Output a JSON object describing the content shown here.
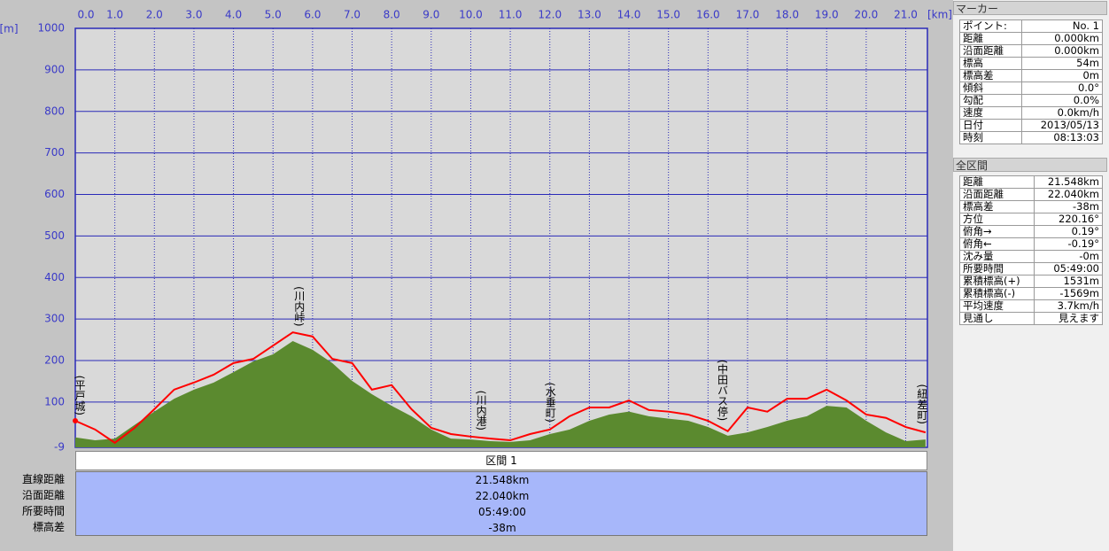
{
  "chart_data": {
    "type": "area",
    "x_label": "[km]",
    "y_label": "[m]",
    "xlim": [
      0,
      21.548
    ],
    "ylim": [
      -9,
      1000
    ],
    "xticks": [
      {
        "value": 0,
        "label": "0.0"
      },
      {
        "value": 1,
        "label": "1.0"
      },
      {
        "value": 2,
        "label": "2.0"
      },
      {
        "value": 3,
        "label": "3.0"
      },
      {
        "value": 4,
        "label": "4.0"
      },
      {
        "value": 5,
        "label": "5.0"
      },
      {
        "value": 6,
        "label": "6.0"
      },
      {
        "value": 7,
        "label": "7.0"
      },
      {
        "value": 8,
        "label": "8.0"
      },
      {
        "value": 9,
        "label": "9.0"
      },
      {
        "value": 10,
        "label": "10.0"
      },
      {
        "value": 11,
        "label": "11.0"
      },
      {
        "value": 12,
        "label": "12.0"
      },
      {
        "value": 13,
        "label": "13.0"
      },
      {
        "value": 14,
        "label": "14.0"
      },
      {
        "value": 15,
        "label": "15.0"
      },
      {
        "value": 16,
        "label": "16.0"
      },
      {
        "value": 17,
        "label": "17.0"
      },
      {
        "value": 18,
        "label": "18.0"
      },
      {
        "value": 19,
        "label": "19.0"
      },
      {
        "value": 20,
        "label": "20.0"
      },
      {
        "value": 21,
        "label": "21.0"
      }
    ],
    "yticks": [
      -9,
      100,
      200,
      300,
      400,
      500,
      600,
      700,
      800,
      900,
      1000
    ],
    "grid": true,
    "x": [
      0,
      0.5,
      1,
      1.5,
      2,
      2.5,
      3,
      3.5,
      4,
      4.5,
      5,
      5.5,
      6,
      6.5,
      7,
      7.5,
      8,
      8.5,
      9,
      9.5,
      10,
      10.5,
      11,
      11.5,
      12,
      12.5,
      13,
      13.5,
      14,
      14.5,
      15,
      15.5,
      16,
      16.5,
      17,
      17.5,
      18,
      18.5,
      19,
      19.5,
      20,
      20.5,
      21,
      21.5
    ],
    "series": [
      {
        "type": "area",
        "color": "#5b8a2f",
        "values": [
          15,
          8,
          12,
          45,
          77,
          108,
          130,
          147,
          172,
          198,
          215,
          247,
          226,
          194,
          151,
          119,
          91,
          66,
          34,
          12,
          10,
          6,
          4,
          8,
          23,
          34,
          55,
          70,
          77,
          66,
          60,
          55,
          40,
          19,
          27,
          40,
          55,
          66,
          91,
          87,
          55,
          27,
          6,
          10
        ]
      },
      {
        "type": "line",
        "color": "#ff0000",
        "values": [
          55,
          34,
          2,
          38,
          83,
          130,
          147,
          166,
          194,
          204,
          236,
          268,
          258,
          204,
          194,
          130,
          141,
          83,
          38,
          23,
          17,
          12,
          8,
          23,
          34,
          66,
          87,
          87,
          104,
          81,
          77,
          70,
          55,
          30,
          87,
          77,
          108,
          108,
          130,
          104,
          70,
          62,
          40,
          27
        ]
      }
    ],
    "annotations": [
      {
        "text": "(平戸城)",
        "x": 0.1
      },
      {
        "text": "(川内峠)",
        "x": 5.65
      },
      {
        "text": "(川内港)",
        "x": 10.25
      },
      {
        "text": "(水垂町)",
        "x": 12.0
      },
      {
        "text": "(中田バス停)",
        "x": 16.35
      },
      {
        "text": "(紐差町)",
        "x": 21.4
      }
    ]
  },
  "marker_panel": {
    "title": "マーカー",
    "rows": [
      [
        "ポイント:",
        "No. 1"
      ],
      [
        "距離",
        "0.000km"
      ],
      [
        "沿面距離",
        "0.000km"
      ],
      [
        "標高",
        "54m"
      ],
      [
        "標高差",
        "0m"
      ],
      [
        "傾斜",
        "0.0°"
      ],
      [
        "勾配",
        "0.0%"
      ],
      [
        "速度",
        "0.0km/h"
      ],
      [
        "日付",
        "2013/05/13"
      ],
      [
        "時刻",
        "08:13:03"
      ]
    ]
  },
  "total_panel": {
    "title": "全区間",
    "rows": [
      [
        "距離",
        "21.548km"
      ],
      [
        "沿面距離",
        "22.040km"
      ],
      [
        "標高差",
        "-38m"
      ],
      [
        "方位",
        "220.16°"
      ],
      [
        "俯角→",
        "0.19°"
      ],
      [
        "俯角←",
        "-0.19°"
      ],
      [
        "沈み量",
        "-0m"
      ],
      [
        "所要時間",
        "05:49:00"
      ],
      [
        "累積標高(+)",
        "1531m"
      ],
      [
        "累積標高(-)",
        "-1569m"
      ],
      [
        "平均速度",
        "3.7km/h"
      ],
      [
        "見通し",
        "見えます"
      ]
    ]
  },
  "section_summary": {
    "title": "区間 1",
    "rows": [
      [
        "直線距離",
        "21.548km"
      ],
      [
        "沿面距離",
        "22.040km"
      ],
      [
        "所要時間",
        "05:49:00"
      ],
      [
        "標高差",
        "-38m"
      ]
    ]
  }
}
